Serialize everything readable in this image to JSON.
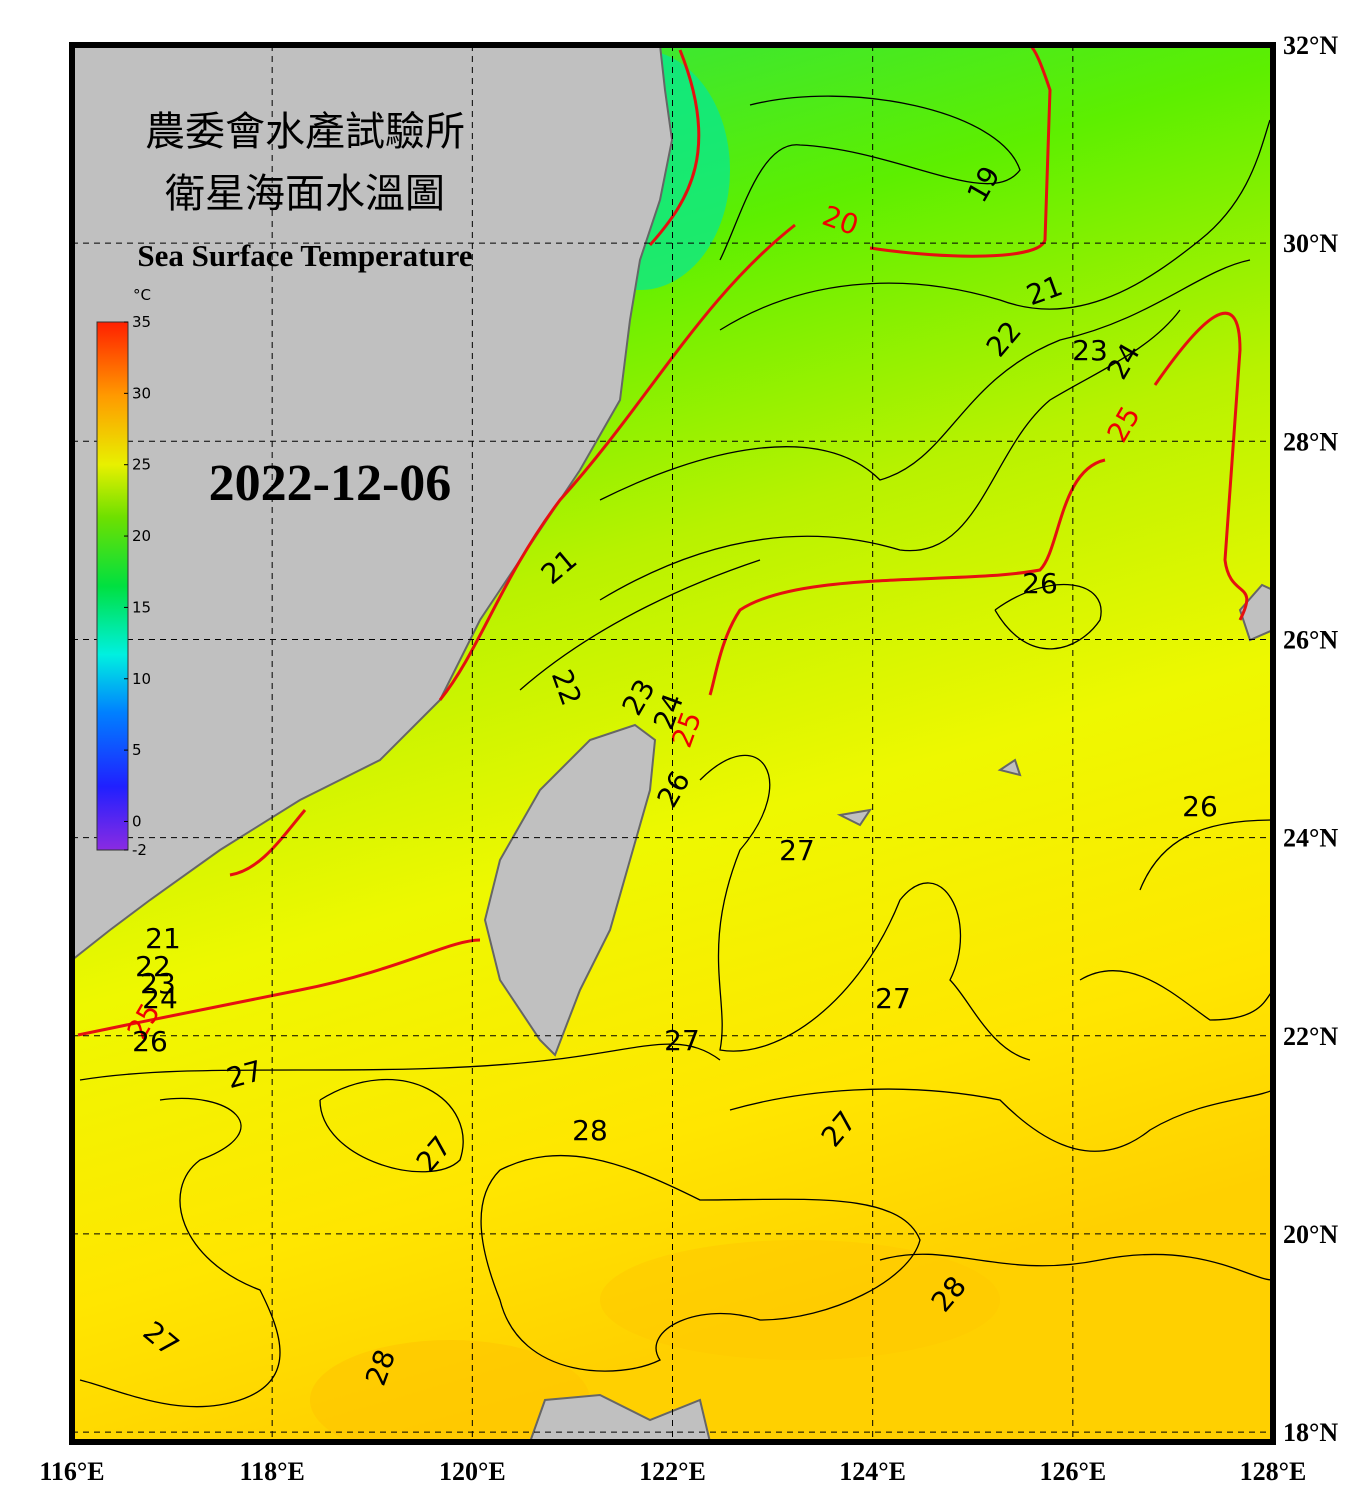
{
  "title": [
    "農委會水產試驗所",
    "衛星海面水溫圖"
  ],
  "subtitle": "Sea Surface Temperature",
  "date": "2022-12-06",
  "colorbar": {
    "unit": "°C",
    "lim": [
      -2,
      35
    ],
    "ticks": [
      35,
      30,
      25,
      20,
      15,
      10,
      5,
      0,
      -2
    ]
  },
  "lon_lim": [
    116,
    128
  ],
  "lat_lim": [
    17.9,
    32
  ],
  "lon_ticks": [
    {
      "value": 116,
      "label": "116°E"
    },
    {
      "value": 118,
      "label": "118°E"
    },
    {
      "value": 120,
      "label": "120°E"
    },
    {
      "value": 122,
      "label": "122°E"
    },
    {
      "value": 124,
      "label": "124°E"
    },
    {
      "value": 126,
      "label": "126°E"
    },
    {
      "value": 128,
      "label": "128°E"
    }
  ],
  "lat_ticks": [
    {
      "value": 32,
      "label": "32°N"
    },
    {
      "value": 30,
      "label": "30°N"
    },
    {
      "value": 28,
      "label": "28°N"
    },
    {
      "value": 26,
      "label": "26°N"
    },
    {
      "value": 24,
      "label": "24°N"
    },
    {
      "value": 22,
      "label": "22°N"
    },
    {
      "value": 20,
      "label": "20°N"
    },
    {
      "value": 18,
      "label": "18°N"
    }
  ],
  "contour_labels": [
    "19",
    "20",
    "21",
    "22",
    "23",
    "24",
    "25",
    "21",
    "22",
    "23",
    "24",
    "25",
    "26",
    "26",
    "26",
    "27",
    "27",
    "27",
    "27",
    "27",
    "28",
    "27",
    "28",
    "28",
    "27",
    "21",
    "22",
    "23",
    "24",
    "25",
    "26"
  ]
}
